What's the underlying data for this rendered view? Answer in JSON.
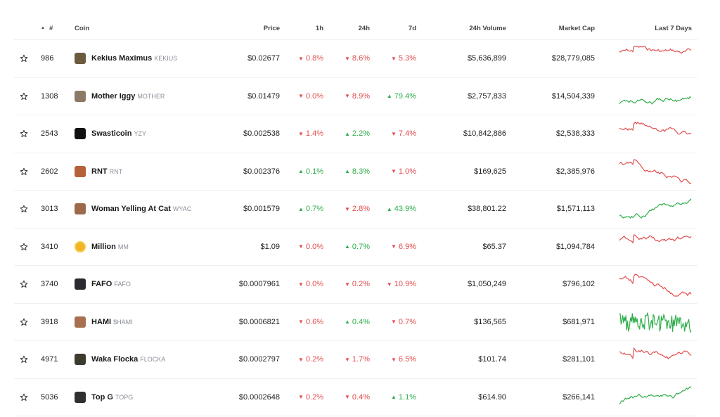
{
  "header": {
    "rank": "#",
    "coin": "Coin",
    "price": "Price",
    "h1": "1h",
    "h24": "24h",
    "d7": "7d",
    "volume": "24h Volume",
    "mcap": "Market Cap",
    "spark": "Last 7 Days"
  },
  "colors": {
    "negative": "#e34d4d",
    "positive": "#2fae4a"
  },
  "rows": [
    {
      "rank": "986",
      "name": "Kekius Maximus",
      "symbol": "KEKIUS",
      "price": "$0.02677",
      "h1": "0.8%",
      "h1_dir": "down",
      "h24": "8.6%",
      "h24_dir": "down",
      "d7": "5.3%",
      "d7_dir": "down",
      "volume": "$5,636,899",
      "mcap": "$28,779,085",
      "trend": "down",
      "logo_color": "#6b5a3e"
    },
    {
      "rank": "1308",
      "name": "Mother Iggy",
      "symbol": "MOTHER",
      "price": "$0.01479",
      "h1": "0.0%",
      "h1_dir": "down",
      "h24": "8.9%",
      "h24_dir": "down",
      "d7": "79.4%",
      "d7_dir": "up",
      "volume": "$2,757,833",
      "mcap": "$14,504,339",
      "trend": "up",
      "logo_color": "#8c7a66"
    },
    {
      "rank": "2543",
      "name": "Swasticoin",
      "symbol": "YZY",
      "price": "$0.002538",
      "h1": "1.4%",
      "h1_dir": "down",
      "h24": "2.2%",
      "h24_dir": "up",
      "d7": "7.4%",
      "d7_dir": "down",
      "volume": "$10,842,886",
      "mcap": "$2,538,333",
      "trend": "down",
      "logo_color": "#111111"
    },
    {
      "rank": "2602",
      "name": "RNT",
      "symbol": "RNT",
      "price": "$0.002376",
      "h1": "0.1%",
      "h1_dir": "up",
      "h24": "8.3%",
      "h24_dir": "up",
      "d7": "1.0%",
      "d7_dir": "down",
      "volume": "$169,625",
      "mcap": "$2,385,976",
      "trend": "down",
      "logo_color": "#b5623a"
    },
    {
      "rank": "3013",
      "name": "Woman Yelling At Cat",
      "symbol": "WYAC",
      "price": "$0.001579",
      "h1": "0.7%",
      "h1_dir": "up",
      "h24": "2.8%",
      "h24_dir": "down",
      "d7": "43.9%",
      "d7_dir": "up",
      "volume": "$38,801.22",
      "mcap": "$1,571,113",
      "trend": "up",
      "logo_color": "#9c6a4a"
    },
    {
      "rank": "3410",
      "name": "Million",
      "symbol": "MM",
      "price": "$1.09",
      "h1": "0.0%",
      "h1_dir": "down",
      "h24": "0.7%",
      "h24_dir": "up",
      "d7": "6.9%",
      "d7_dir": "down",
      "volume": "$65.37",
      "mcap": "$1,094,784",
      "trend": "down",
      "logo_color": "#f0b429"
    },
    {
      "rank": "3740",
      "name": "FAFO",
      "symbol": "FAFO",
      "price": "$0.0007961",
      "h1": "0.0%",
      "h1_dir": "down",
      "h24": "0.2%",
      "h24_dir": "down",
      "d7": "10.9%",
      "d7_dir": "down",
      "volume": "$1,050,249",
      "mcap": "$796,102",
      "trend": "down",
      "logo_color": "#2b2a33"
    },
    {
      "rank": "3918",
      "name": "HAMI",
      "symbol": "$HAMI",
      "price": "$0.0006821",
      "h1": "0.6%",
      "h1_dir": "down",
      "h24": "0.4%",
      "h24_dir": "up",
      "d7": "0.7%",
      "d7_dir": "down",
      "volume": "$136,565",
      "mcap": "$681,971",
      "trend": "up",
      "logo_color": "#a7704f"
    },
    {
      "rank": "4971",
      "name": "Waka Flocka",
      "symbol": "FLOCKA",
      "price": "$0.0002797",
      "h1": "0.2%",
      "h1_dir": "down",
      "h24": "1.7%",
      "h24_dir": "down",
      "d7": "6.5%",
      "d7_dir": "down",
      "volume": "$101.74",
      "mcap": "$281,101",
      "trend": "down",
      "logo_color": "#3d3a30"
    },
    {
      "rank": "5036",
      "name": "Top G",
      "symbol": "TOPG",
      "price": "$0.0002648",
      "h1": "0.2%",
      "h1_dir": "down",
      "h24": "0.4%",
      "h24_dir": "down",
      "d7": "1.1%",
      "d7_dir": "up",
      "volume": "$614.90",
      "mcap": "$266,141",
      "trend": "up",
      "logo_color": "#2f2f2f"
    }
  ]
}
